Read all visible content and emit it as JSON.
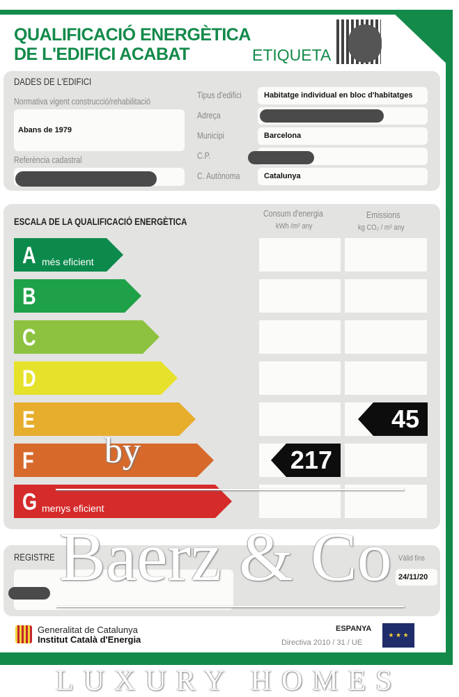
{
  "header": {
    "title_line1": "QUALIFICACIÓ ENERGÈTICA",
    "title_line2": "DE L'EDIFICI ACABAT",
    "label": "ETIQUETA"
  },
  "building": {
    "section_title": "DADES DE L'EDIFICI",
    "normativa_label": "Normativa vigent construcció/rehabilitació",
    "normativa_value": "Abans de 1979",
    "cadastral_label": "Referència cadastral",
    "fields": [
      {
        "label": "Tipus d'edifici",
        "value": "Habitatge individual en bloc d'habitatges"
      },
      {
        "label": "Adreça",
        "value": ""
      },
      {
        "label": "Municipi",
        "value": "Barcelona"
      },
      {
        "label": "C.P.",
        "value": ""
      },
      {
        "label": "C. Autònoma",
        "value": "Catalunya"
      }
    ]
  },
  "scale": {
    "title": "ESCALA DE LA QUALIFICACIÓ ENERGÈTICA",
    "energy_header": "Consum d'energia",
    "energy_unit": "kWh /m² any",
    "emissions_header": "Emissions",
    "emissions_unit": "kg CO₂ / m² any",
    "classes": [
      {
        "letter": "A",
        "sub": "més eficient",
        "color": "#0b8a4b"
      },
      {
        "letter": "B",
        "sub": "",
        "color": "#1fa149"
      },
      {
        "letter": "C",
        "sub": "",
        "color": "#8cc23f"
      },
      {
        "letter": "D",
        "sub": "",
        "color": "#e6e22c"
      },
      {
        "letter": "E",
        "sub": "",
        "color": "#e6ae2c"
      },
      {
        "letter": "F",
        "sub": "",
        "color": "#d7692b"
      },
      {
        "letter": "G",
        "sub": "menys eficient",
        "color": "#d52b2b"
      }
    ],
    "energy_rating": {
      "class": "F",
      "value": "217"
    },
    "emissions_rating": {
      "class": "E",
      "value": "45"
    }
  },
  "register": {
    "title": "REGISTRE",
    "valid_label": "Vàlid fins",
    "valid_value": "24/11/20"
  },
  "footer": {
    "org1": "Generalitat de Catalunya",
    "org2": "Institut Català d'Energia",
    "country": "ESPANYA",
    "directive": "Directiva 2010 / 31 / UE"
  },
  "watermark": {
    "by": "by",
    "brand": "Baerz & Co",
    "tagline": "LUXURY HOMES"
  }
}
